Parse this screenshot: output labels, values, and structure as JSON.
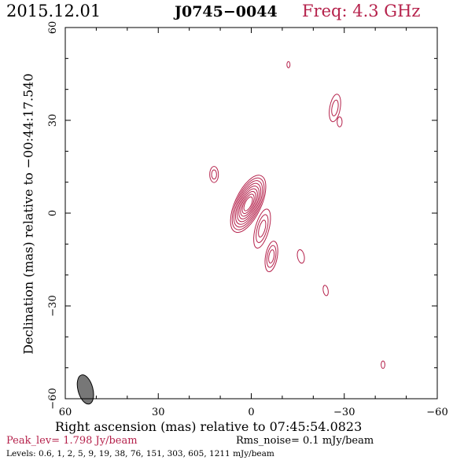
{
  "header": {
    "date": "2015.12.01",
    "source": "J0745−0044",
    "freq": "Freq: 4.3 GHz"
  },
  "chart_data": {
    "type": "contour",
    "xlabel": "Right ascension (mas) relative to 07:45:54.0823",
    "ylabel": "Declination (mas) relative to −00:44:17.540",
    "xlim": [
      60,
      -60
    ],
    "ylim": [
      -60,
      60
    ],
    "x_ticks": [
      {
        "value": 60,
        "label": "60"
      },
      {
        "value": 30,
        "label": "30"
      },
      {
        "value": 0,
        "label": "0"
      },
      {
        "value": -30,
        "label": "−30"
      },
      {
        "value": -60,
        "label": "−60"
      }
    ],
    "y_ticks": [
      {
        "value": 60,
        "label": "60"
      },
      {
        "value": 30,
        "label": "30"
      },
      {
        "value": 0,
        "label": "0"
      },
      {
        "value": -30,
        "label": "−30"
      },
      {
        "value": -60,
        "label": "−60"
      }
    ],
    "contour_color": "#b5214b",
    "beam": {
      "x": 53.5,
      "y": -57,
      "major": 4.4,
      "minor": 2.0,
      "pa_deg": -15
    },
    "components": [
      {
        "x": 1,
        "y": 3,
        "rx": 4.2,
        "ry": 10,
        "angle": 25,
        "levels": 9,
        "peak": true
      },
      {
        "x": -3.5,
        "y": -5,
        "rx": 2.2,
        "ry": 6.5,
        "angle": 15,
        "levels": 3
      },
      {
        "x": -6.5,
        "y": -14,
        "rx": 1.9,
        "ry": 5,
        "angle": 10,
        "levels": 3
      },
      {
        "x": 12,
        "y": 12.5,
        "rx": 1.4,
        "ry": 2.6,
        "angle": 0,
        "levels": 2
      },
      {
        "x": -12,
        "y": 48,
        "rx": 0.5,
        "ry": 1.0,
        "angle": 0,
        "levels": 1
      },
      {
        "x": -27,
        "y": 34,
        "rx": 1.7,
        "ry": 4.5,
        "angle": 10,
        "levels": 2
      },
      {
        "x": -28.5,
        "y": 29.5,
        "rx": 0.8,
        "ry": 1.6,
        "angle": 0,
        "levels": 1
      },
      {
        "x": -16,
        "y": -14,
        "rx": 1.1,
        "ry": 2.2,
        "angle": -10,
        "levels": 1
      },
      {
        "x": -24,
        "y": -25,
        "rx": 0.8,
        "ry": 1.7,
        "angle": -10,
        "levels": 1
      },
      {
        "x": -42.5,
        "y": -49,
        "rx": 0.6,
        "ry": 1.2,
        "angle": 0,
        "levels": 1
      }
    ]
  },
  "footer": {
    "peak": "Peak_lev=   1.798 Jy/beam",
    "rms": "Rms_noise=   0.1 mJy/beam",
    "levels": "Levels: 0.6,    1,    2,    5,    9,   19,   38,   76,  151,  303,  605,  1211 mJy/beam"
  }
}
